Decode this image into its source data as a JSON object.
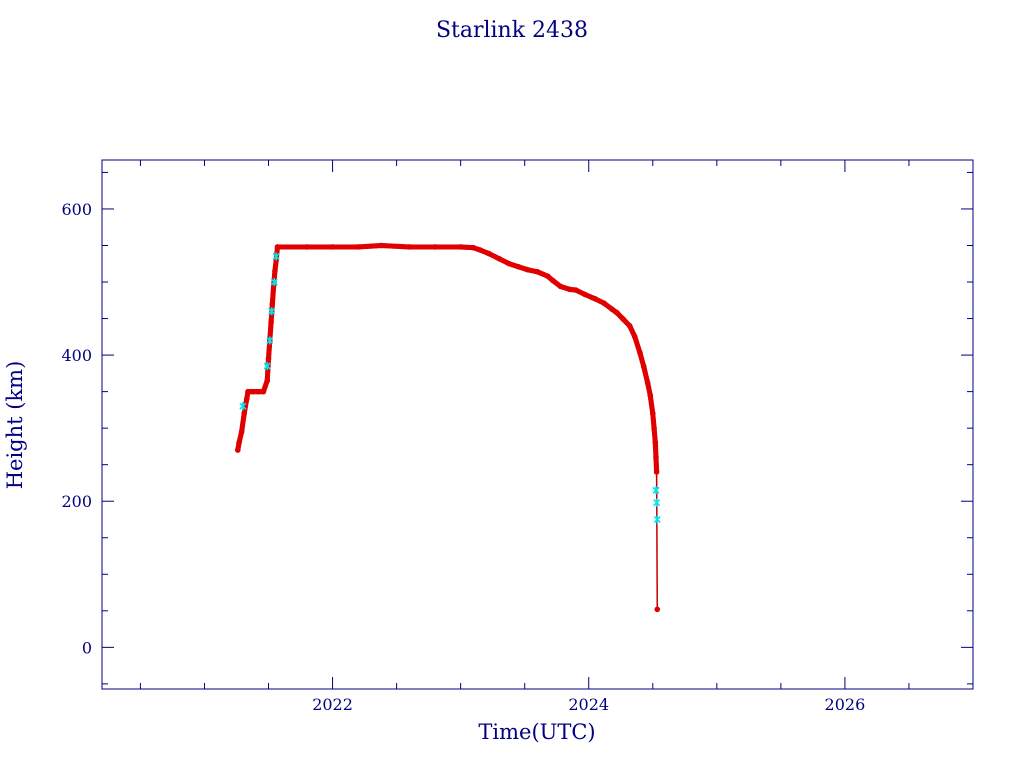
{
  "chart_data": {
    "type": "scatter",
    "title": "Starlink 2438",
    "xlabel": "Time(UTC)",
    "ylabel": "Height (km)",
    "xlim": [
      2020.2,
      2027.0
    ],
    "ylim": [
      -57,
      667
    ],
    "x_ticks": [
      2022,
      2024,
      2026
    ],
    "y_ticks": [
      0,
      200,
      400,
      600
    ],
    "grid": false,
    "colors": {
      "frame": "#000080",
      "main_series": "#e00000",
      "highlight_series": "#00e5ee",
      "reentry_line": "#c00000"
    },
    "series": [
      {
        "role": "main",
        "values": [
          [
            2021.26,
            270
          ],
          [
            2021.27,
            280
          ],
          [
            2021.29,
            295
          ],
          [
            2021.31,
            320
          ],
          [
            2021.33,
            340
          ],
          [
            2021.34,
            350
          ],
          [
            2021.38,
            350
          ],
          [
            2021.42,
            350
          ],
          [
            2021.46,
            350
          ],
          [
            2021.49,
            365
          ],
          [
            2021.5,
            395
          ],
          [
            2021.51,
            420
          ],
          [
            2021.52,
            445
          ],
          [
            2021.53,
            470
          ],
          [
            2021.54,
            495
          ],
          [
            2021.55,
            515
          ],
          [
            2021.56,
            530
          ],
          [
            2021.57,
            548
          ],
          [
            2021.8,
            548
          ],
          [
            2022.0,
            548
          ],
          [
            2022.2,
            548
          ],
          [
            2022.38,
            550
          ],
          [
            2022.6,
            548
          ],
          [
            2022.8,
            548
          ],
          [
            2023.0,
            548
          ],
          [
            2023.1,
            547
          ],
          [
            2023.15,
            544
          ],
          [
            2023.22,
            539
          ],
          [
            2023.3,
            532
          ],
          [
            2023.38,
            525
          ],
          [
            2023.45,
            521
          ],
          [
            2023.52,
            517
          ],
          [
            2023.6,
            514
          ],
          [
            2023.68,
            508
          ],
          [
            2023.72,
            502
          ],
          [
            2023.78,
            494
          ],
          [
            2023.85,
            490
          ],
          [
            2023.9,
            489
          ],
          [
            2023.97,
            483
          ],
          [
            2024.05,
            477
          ],
          [
            2024.12,
            471
          ],
          [
            2024.18,
            463
          ],
          [
            2024.22,
            458
          ],
          [
            2024.27,
            449
          ],
          [
            2024.32,
            440
          ],
          [
            2024.36,
            425
          ],
          [
            2024.4,
            403
          ],
          [
            2024.43,
            384
          ],
          [
            2024.46,
            362
          ],
          [
            2024.48,
            345
          ],
          [
            2024.5,
            320
          ],
          [
            2024.51,
            300
          ],
          [
            2024.52,
            280
          ],
          [
            2024.525,
            260
          ],
          [
            2024.53,
            240
          ],
          [
            2024.535,
            52
          ]
        ]
      },
      {
        "role": "highlight",
        "values": [
          [
            2021.3,
            330
          ],
          [
            2021.49,
            385
          ],
          [
            2021.51,
            420
          ],
          [
            2021.525,
            460
          ],
          [
            2021.545,
            500
          ],
          [
            2021.56,
            535
          ],
          [
            2024.525,
            215
          ],
          [
            2024.53,
            198
          ],
          [
            2024.535,
            175
          ]
        ]
      }
    ]
  }
}
